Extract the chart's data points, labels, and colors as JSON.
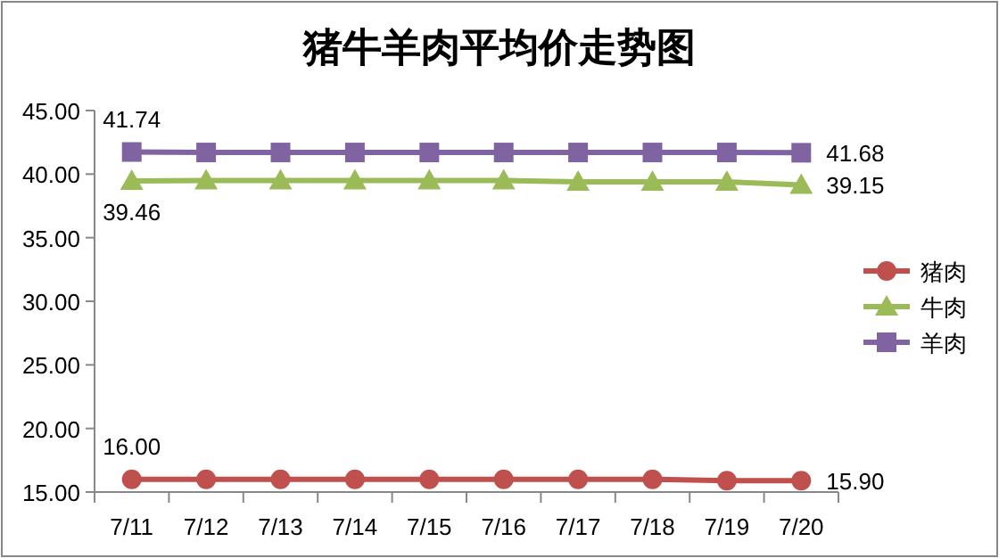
{
  "chart_data": {
    "type": "line",
    "title": "猪牛羊肉平均价走势图",
    "categories": [
      "7/11",
      "7/12",
      "7/13",
      "7/14",
      "7/15",
      "7/16",
      "7/17",
      "7/18",
      "7/19",
      "7/20"
    ],
    "series": [
      {
        "name": "猪肉",
        "color": "#c0504d",
        "marker": "circle",
        "values": [
          16.0,
          16.0,
          16.0,
          16.0,
          16.0,
          16.0,
          16.0,
          16.0,
          15.9,
          15.9
        ],
        "value_labels": [
          "16.00",
          null,
          null,
          null,
          null,
          null,
          null,
          null,
          null,
          "15.90"
        ]
      },
      {
        "name": "牛肉",
        "color": "#9bbb59",
        "marker": "triangle",
        "values": [
          39.46,
          39.5,
          39.5,
          39.5,
          39.5,
          39.5,
          39.4,
          39.4,
          39.4,
          39.15
        ],
        "value_labels": [
          "39.46",
          null,
          null,
          null,
          null,
          null,
          null,
          null,
          null,
          "39.15"
        ]
      },
      {
        "name": "羊肉",
        "color": "#8064a2",
        "marker": "square",
        "values": [
          41.74,
          41.7,
          41.7,
          41.7,
          41.7,
          41.7,
          41.7,
          41.7,
          41.7,
          41.68
        ],
        "value_labels": [
          "41.74",
          null,
          null,
          null,
          null,
          null,
          null,
          null,
          null,
          "41.68"
        ]
      }
    ],
    "ylim": [
      15,
      45
    ],
    "yticks": [
      {
        "value": 15,
        "label": "15.00"
      },
      {
        "value": 20,
        "label": "20.00"
      },
      {
        "value": 25,
        "label": "25.00"
      },
      {
        "value": 30,
        "label": "30.00"
      },
      {
        "value": 35,
        "label": "35.00"
      },
      {
        "value": 40,
        "label": "40.00"
      },
      {
        "value": 45,
        "label": "45.00"
      }
    ],
    "grid": false,
    "legend": "right",
    "line_style": "solid"
  }
}
